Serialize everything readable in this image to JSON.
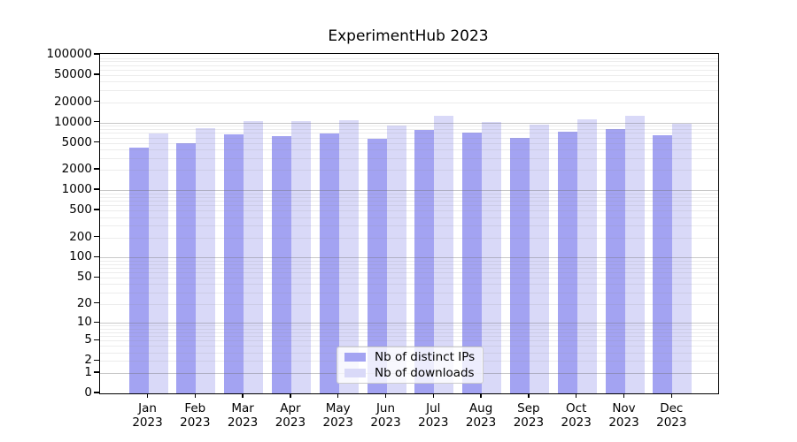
{
  "figure": {
    "title": "ExperimentHub 2023"
  },
  "colors": {
    "distinct_ips_bar": "#a3a3f2",
    "downloads_bar": "#d9d9f8",
    "grid_major": "#c9c9c9",
    "grid_minor": "#eaeaea",
    "axis": "#000000",
    "legend_border": "#cccccc"
  },
  "chart_data": {
    "type": "bar",
    "title": "ExperimentHub 2023",
    "xlabel": "",
    "ylabel": "",
    "y_scale": "log-like (log10 of 1+value), 0 at baseline",
    "ylim": [
      0,
      100000
    ],
    "grid": "horizontal major gridlines at powers of 10, minor at 2-9 multiples",
    "legend_position": "lower center",
    "categories": [
      "Jan",
      "Feb",
      "Mar",
      "Apr",
      "May",
      "Jun",
      "Jul",
      "Aug",
      "Sep",
      "Oct",
      "Nov",
      "Dec"
    ],
    "x_tick_year": "2023",
    "y_ticks": [
      {
        "value": 0,
        "label": "0"
      },
      {
        "value": 1,
        "label": "1"
      },
      {
        "value": 2,
        "label": "2"
      },
      {
        "value": 5,
        "label": "5"
      },
      {
        "value": 10,
        "label": "10"
      },
      {
        "value": 20,
        "label": "20"
      },
      {
        "value": 50,
        "label": "50"
      },
      {
        "value": 100,
        "label": "100"
      },
      {
        "value": 200,
        "label": "200"
      },
      {
        "value": 500,
        "label": "500"
      },
      {
        "value": 1000,
        "label": "1000"
      },
      {
        "value": 2000,
        "label": "2000"
      },
      {
        "value": 5000,
        "label": "5000"
      },
      {
        "value": 10000,
        "label": "10000"
      },
      {
        "value": 20000,
        "label": "20000"
      },
      {
        "value": 50000,
        "label": "50000"
      },
      {
        "value": 100000,
        "label": "100000"
      }
    ],
    "series": [
      {
        "name": "Nb of distinct IPs",
        "color": "#a3a3f2",
        "values": [
          4200,
          5000,
          6600,
          6300,
          6900,
          5700,
          7700,
          7100,
          5900,
          7300,
          8000,
          6500
        ]
      },
      {
        "name": "Nb of downloads",
        "color": "#d9d9f8",
        "values": [
          6900,
          8200,
          10600,
          10400,
          10900,
          9000,
          12600,
          10300,
          9200,
          11000,
          12400,
          9600
        ]
      }
    ]
  }
}
